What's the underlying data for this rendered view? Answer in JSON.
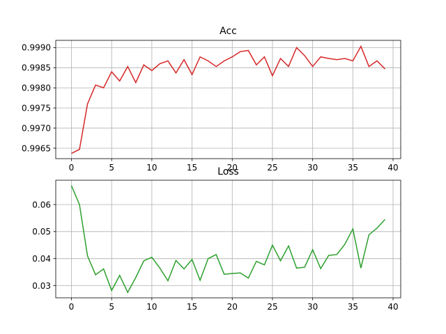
{
  "chart_data": [
    {
      "type": "line",
      "title": "Acc",
      "xlabel": "",
      "ylabel": "",
      "xlim": [
        -1.95,
        40.95
      ],
      "ylim": [
        0.99624,
        0.99918
      ],
      "xticks": [
        0,
        5,
        10,
        15,
        20,
        25,
        30,
        35,
        40
      ],
      "xtick_labels": [
        "0",
        "5",
        "10",
        "15",
        "20",
        "25",
        "30",
        "35",
        "40"
      ],
      "yticks": [
        0.9965,
        0.997,
        0.9975,
        0.998,
        0.9985,
        0.999
      ],
      "ytick_labels": [
        "0.9965",
        "0.9970",
        "0.9975",
        "0.9980",
        "0.9985",
        "0.9990"
      ],
      "grid": true,
      "color": "#d62728",
      "x": [
        0,
        1,
        2,
        3,
        4,
        5,
        6,
        7,
        8,
        9,
        10,
        11,
        12,
        13,
        14,
        15,
        16,
        17,
        18,
        19,
        20,
        21,
        22,
        23,
        24,
        25,
        26,
        27,
        28,
        29,
        30,
        31,
        32,
        33,
        34,
        35,
        36,
        37,
        38,
        39
      ],
      "y": [
        0.99637,
        0.99647,
        0.9976,
        0.99807,
        0.998,
        0.9984,
        0.99817,
        0.99853,
        0.99813,
        0.99857,
        0.99843,
        0.9986,
        0.99867,
        0.99837,
        0.9987,
        0.99833,
        0.99877,
        0.99867,
        0.99853,
        0.99867,
        0.99877,
        0.9989,
        0.99893,
        0.99857,
        0.99877,
        0.9983,
        0.99873,
        0.99853,
        0.999,
        0.9988,
        0.99853,
        0.99877,
        0.99873,
        0.9987,
        0.99873,
        0.99867,
        0.99903,
        0.99853,
        0.99867,
        0.99847
      ]
    },
    {
      "type": "line",
      "title": "Loss",
      "xlabel": "",
      "ylabel": "",
      "xlim": [
        -1.95,
        40.95
      ],
      "ylim": [
        0.0255,
        0.069
      ],
      "xticks": [
        0,
        5,
        10,
        15,
        20,
        25,
        30,
        35,
        40
      ],
      "xtick_labels": [
        "0",
        "5",
        "10",
        "15",
        "20",
        "25",
        "30",
        "35",
        "40"
      ],
      "yticks": [
        0.03,
        0.04,
        0.05,
        0.06
      ],
      "ytick_labels": [
        "0.03",
        "0.04",
        "0.05",
        "0.06"
      ],
      "grid": true,
      "color": "#2ca02c",
      "x": [
        0,
        1,
        2,
        3,
        4,
        5,
        6,
        7,
        8,
        9,
        10,
        11,
        12,
        13,
        14,
        15,
        16,
        17,
        18,
        19,
        20,
        21,
        22,
        23,
        24,
        25,
        26,
        27,
        28,
        29,
        30,
        31,
        32,
        33,
        34,
        35,
        36,
        37,
        38,
        39
      ],
      "y": [
        0.067,
        0.06,
        0.041,
        0.034,
        0.0362,
        0.0282,
        0.0338,
        0.0275,
        0.033,
        0.0392,
        0.0405,
        0.0365,
        0.0318,
        0.0393,
        0.0362,
        0.0397,
        0.032,
        0.04,
        0.0415,
        0.0342,
        0.0345,
        0.0347,
        0.0328,
        0.039,
        0.0377,
        0.045,
        0.0392,
        0.0447,
        0.0365,
        0.0368,
        0.0433,
        0.0363,
        0.0412,
        0.0415,
        0.0453,
        0.051,
        0.0365,
        0.0488,
        0.0513,
        0.0545
      ]
    }
  ]
}
